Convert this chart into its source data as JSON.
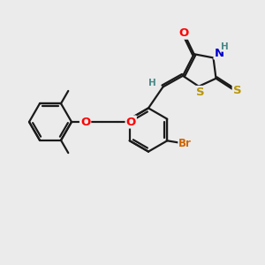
{
  "bg_color": "#ebebeb",
  "bond_color": "#1a1a1a",
  "bond_width": 1.6,
  "atom_colors": {
    "O": "#ff0000",
    "N": "#0000cc",
    "S": "#b8960a",
    "Br": "#cc6600",
    "H": "#4a8888",
    "C": "#1a1a1a"
  },
  "font_size": 8.5,
  "fig_bg": "#ebebeb"
}
